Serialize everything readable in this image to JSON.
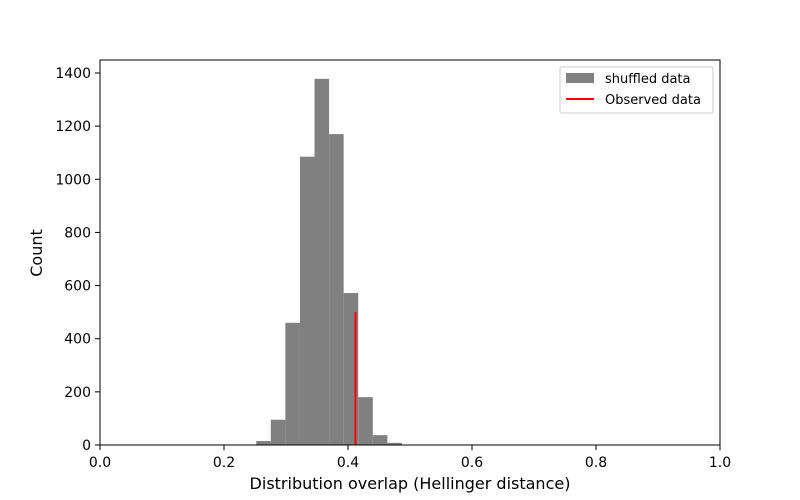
{
  "chart_data": {
    "type": "bar",
    "xlabel": "Distribution overlap (Hellinger distance)",
    "ylabel": "Count",
    "xlim": [
      0.0,
      1.0
    ],
    "ylim": [
      0,
      1400
    ],
    "xticks": [
      "0.0",
      "0.2",
      "0.4",
      "0.6",
      "0.8",
      "1.0"
    ],
    "yticks": [
      "0",
      "200",
      "400",
      "600",
      "800",
      "1000",
      "1200",
      "1400"
    ],
    "bin_width": 0.0235,
    "bins": [
      {
        "x": 0.252,
        "count": 15
      },
      {
        "x": 0.2755,
        "count": 95
      },
      {
        "x": 0.299,
        "count": 460
      },
      {
        "x": 0.3225,
        "count": 1085
      },
      {
        "x": 0.346,
        "count": 1378
      },
      {
        "x": 0.3695,
        "count": 1170
      },
      {
        "x": 0.393,
        "count": 572
      },
      {
        "x": 0.4165,
        "count": 180
      },
      {
        "x": 0.44,
        "count": 37
      },
      {
        "x": 0.4635,
        "count": 8
      }
    ],
    "observed": {
      "x": 0.412,
      "y_max": 500
    },
    "legend": {
      "position": "top-right",
      "entries": [
        {
          "label": "shuffled data",
          "kind": "patch",
          "color": "#808080"
        },
        {
          "label": "Observed data",
          "kind": "line",
          "color": "#ff0000"
        }
      ]
    },
    "colors": {
      "bars": "#808080",
      "observed": "#ff0000"
    },
    "grid": false
  }
}
